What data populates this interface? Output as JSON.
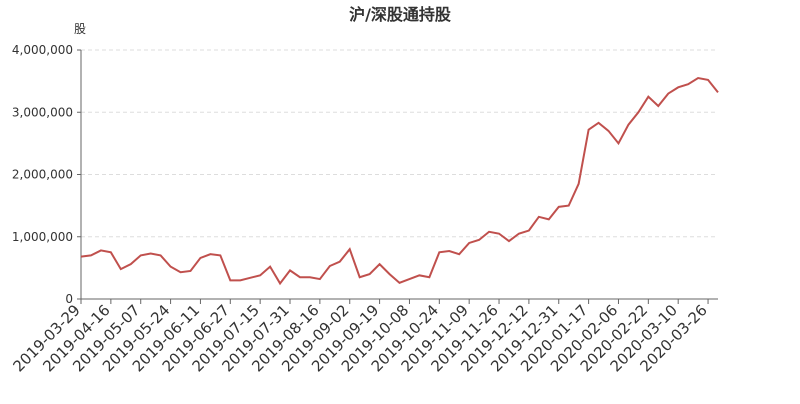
{
  "chart_data": {
    "type": "line",
    "title": "沪/深股通持股",
    "y_label": "股",
    "categories": [
      "2019-03-29",
      null,
      null,
      "2019-04-16",
      null,
      null,
      "2019-05-07",
      null,
      null,
      "2019-05-24",
      null,
      null,
      "2019-06-11",
      null,
      null,
      "2019-06-27",
      null,
      null,
      "2019-07-15",
      null,
      null,
      "2019-07-31",
      null,
      null,
      "2019-08-16",
      null,
      null,
      "2019-09-02",
      null,
      null,
      "2019-09-19",
      null,
      null,
      "2019-10-08",
      null,
      null,
      "2019-10-24",
      null,
      null,
      "2019-11-09",
      null,
      null,
      "2019-11-26",
      null,
      null,
      "2019-12-12",
      null,
      null,
      "2019-12-31",
      null,
      null,
      "2020-01-17",
      null,
      null,
      "2020-02-06",
      null,
      null,
      "2020-02-22",
      null,
      null,
      "2020-03-10",
      null,
      null,
      "2020-03-26",
      null
    ],
    "series": [
      {
        "name": "沪/深股通持股",
        "color": "#c0504d",
        "values": [
          680000,
          700000,
          780000,
          750000,
          480000,
          560000,
          700000,
          730000,
          700000,
          520000,
          430000,
          450000,
          660000,
          720000,
          700000,
          300000,
          300000,
          340000,
          380000,
          520000,
          250000,
          460000,
          350000,
          350000,
          320000,
          530000,
          600000,
          800000,
          350000,
          400000,
          560000,
          400000,
          260000,
          320000,
          380000,
          350000,
          750000,
          770000,
          720000,
          900000,
          950000,
          1080000,
          1050000,
          930000,
          1050000,
          1100000,
          1320000,
          1280000,
          1480000,
          1500000,
          1850000,
          2720000,
          2830000,
          2700000,
          2500000,
          2800000,
          3000000,
          3250000,
          3100000,
          3300000,
          3400000,
          3450000,
          3550000,
          3520000,
          3320000
        ]
      }
    ],
    "ylim": [
      0,
      4000000
    ],
    "yticks": [
      0,
      {
        "value": 1000000,
        "label": "1,000,000"
      },
      {
        "value": 2000000,
        "label": "2,000,000"
      },
      {
        "value": 3000000,
        "label": "3,000,000"
      },
      {
        "value": 4000000,
        "label": "4,000,000"
      }
    ],
    "grid": true
  }
}
